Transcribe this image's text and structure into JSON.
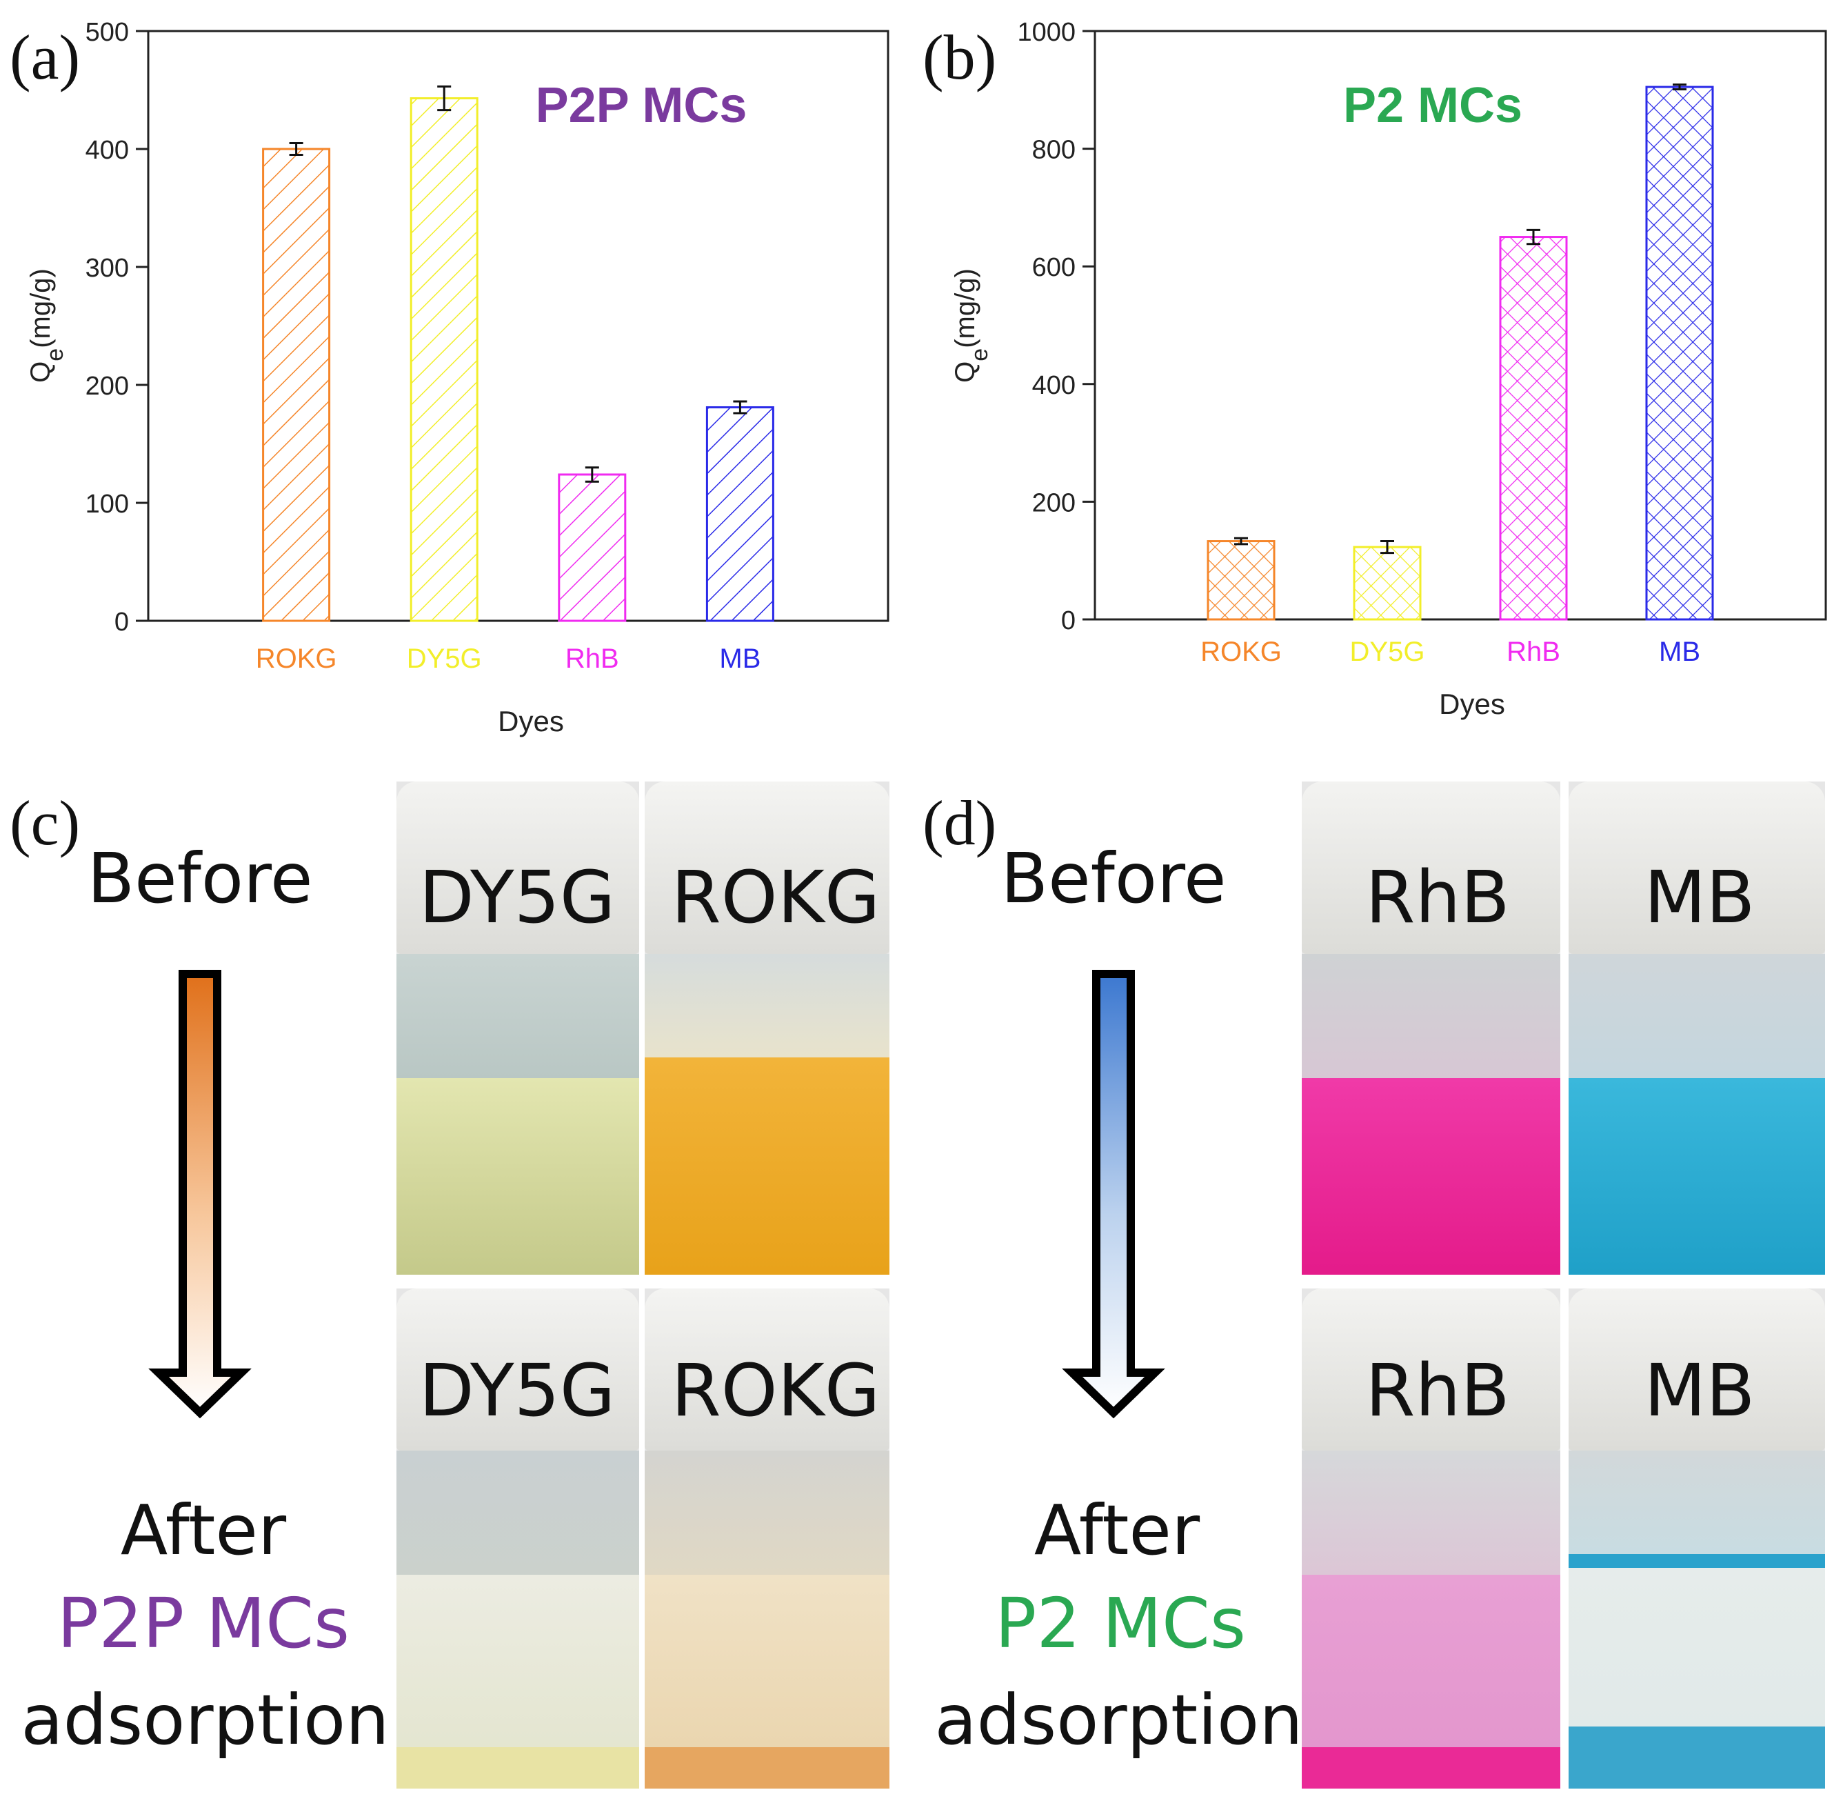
{
  "chart_data": [
    {
      "panel": "(a)",
      "type": "bar",
      "inset_title": "P2P MCs",
      "title_color": "#7a3a9e",
      "ylabel_main": "Q",
      "ylabel_sub": "e",
      "ylabel_unit": "(mg/g)",
      "xlabel": "Dyes",
      "ylim": [
        0,
        500
      ],
      "yticks": [
        "0",
        "100",
        "200",
        "300",
        "400",
        "500"
      ],
      "pattern": "diagonal-hatch",
      "categories": [
        "ROKG",
        "DY5G",
        "RhB",
        "MB"
      ],
      "values": [
        400,
        443,
        124,
        181
      ],
      "errors": [
        5,
        10,
        6,
        5
      ],
      "colors": [
        "#f5862a",
        "#f2ee2a",
        "#f02bf0",
        "#2a2ae8"
      ]
    },
    {
      "panel": "(b)",
      "type": "bar",
      "inset_title": "P2 MCs",
      "title_color": "#2aa852",
      "ylabel_main": "Q",
      "ylabel_sub": "e",
      "ylabel_unit": "(mg/g)",
      "xlabel": "Dyes",
      "ylim": [
        0,
        1000
      ],
      "yticks": [
        "0",
        "200",
        "400",
        "600",
        "800",
        "1000"
      ],
      "pattern": "cross-hatch",
      "categories": [
        "ROKG",
        "DY5G",
        "RhB",
        "MB"
      ],
      "values": [
        133,
        123,
        650,
        905
      ],
      "errors": [
        5,
        10,
        12,
        4
      ],
      "colors": [
        "#f5862a",
        "#f2ee2a",
        "#f02bf0",
        "#2a2ae8"
      ]
    }
  ],
  "panel_c": {
    "letter": "(c)",
    "before": "Before",
    "after": "After",
    "material": "P2P MCs",
    "material_color": "#7a3a9e",
    "adsorption": "adsorption",
    "vials_before": [
      "DY5G",
      "ROKG"
    ],
    "vials_after": [
      "DY5G",
      "ROKG"
    ]
  },
  "panel_d": {
    "letter": "(d)",
    "before": "Before",
    "after": "After",
    "material": "P2 MCs",
    "material_color": "#2aa852",
    "adsorption": "adsorption",
    "vials_before": [
      "RhB",
      "MB"
    ],
    "vials_after": [
      "RhB",
      "MB"
    ]
  }
}
